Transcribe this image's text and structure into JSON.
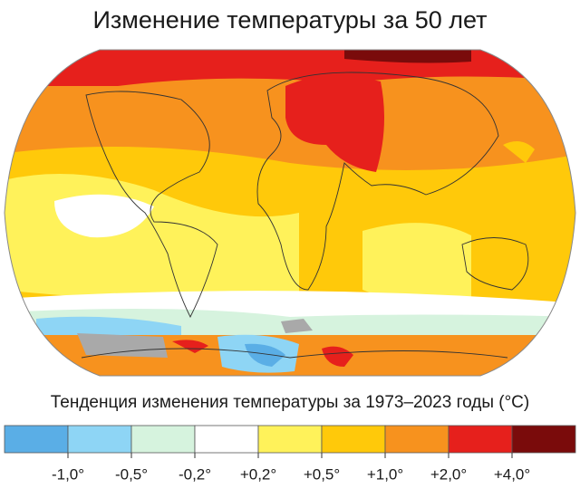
{
  "header": {
    "title": "Изменение температуры за 50 лет"
  },
  "legend": {
    "title": "Тенденция изменения температуры за 1973–2023 годы (°C)",
    "colors": [
      "#5aaee6",
      "#8ed5f5",
      "#d6f3de",
      "#ffffff",
      "#fff25a",
      "#ffc90a",
      "#f7921e",
      "#e6201c",
      "#7a0b0b"
    ],
    "ticks": [
      "-1,0°",
      "-0,5°",
      "-0,2°",
      "+0,2°",
      "+0,5°",
      "+1,0°",
      "+2,0°",
      "+4,0°"
    ]
  }
}
